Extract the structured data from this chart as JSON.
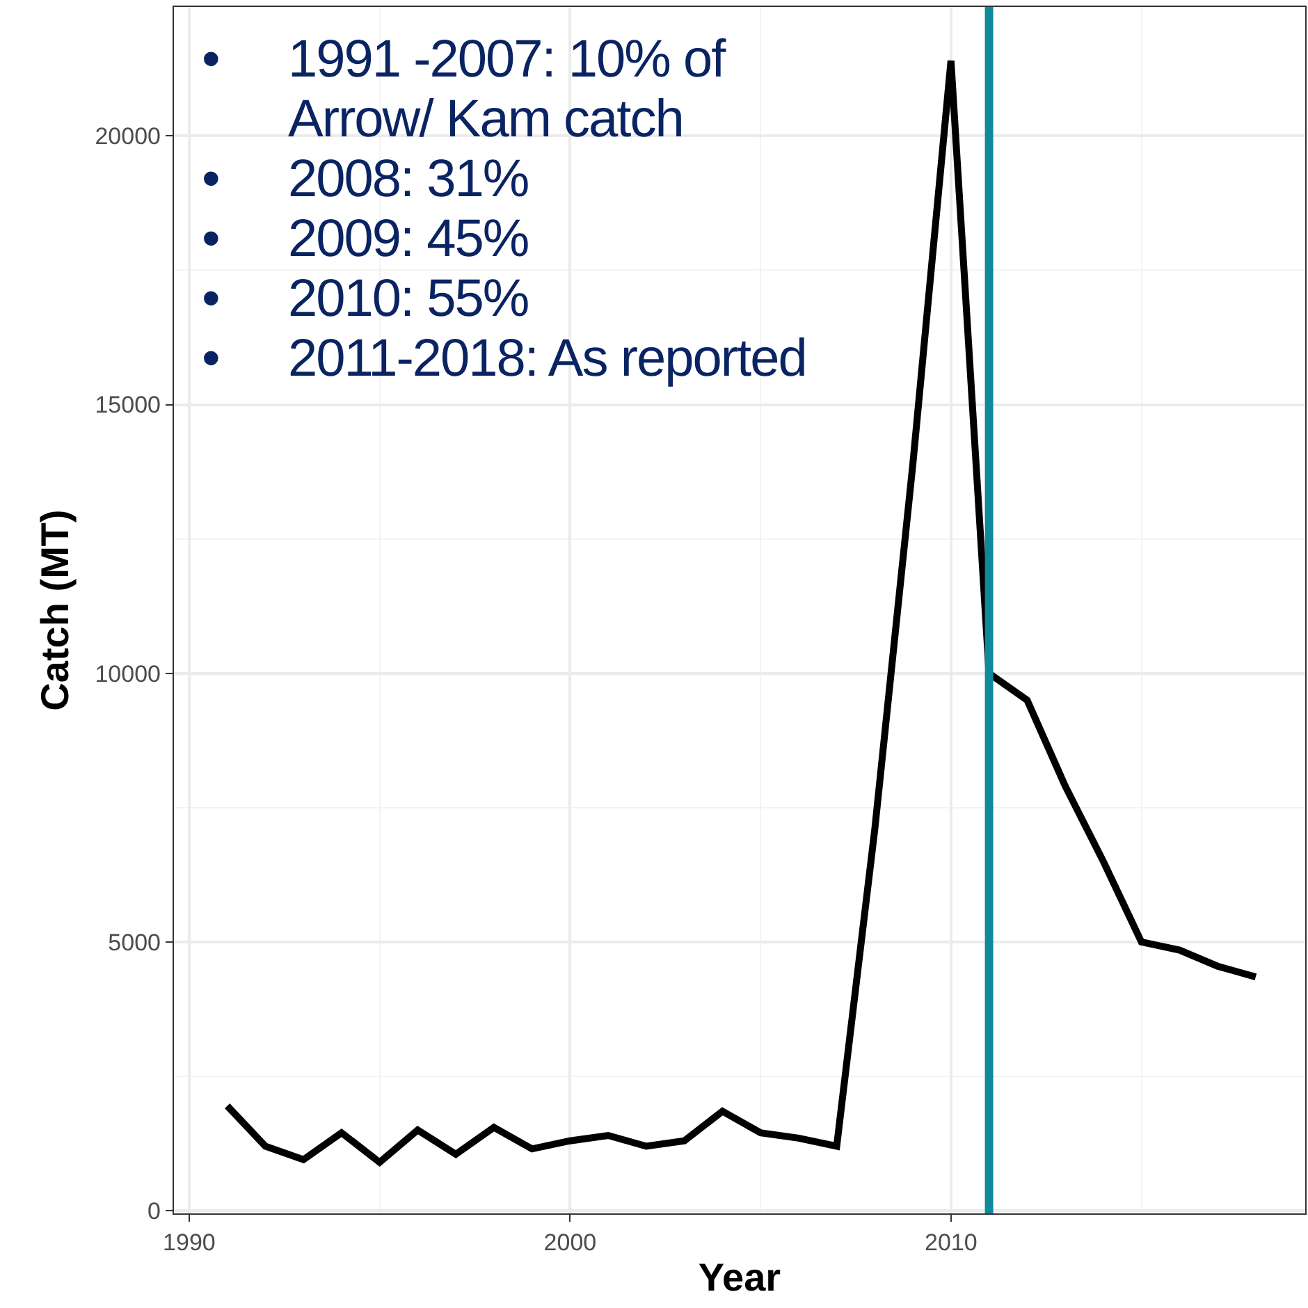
{
  "chart_data": {
    "type": "line",
    "xlabel": "Year",
    "ylabel": "Catch (MT)",
    "x": [
      1991,
      1992,
      1993,
      1994,
      1995,
      1996,
      1997,
      1998,
      1999,
      2000,
      2001,
      2002,
      2003,
      2004,
      2005,
      2006,
      2007,
      2008,
      2009,
      2010,
      2011,
      2012,
      2013,
      2014,
      2015,
      2016,
      2017,
      2018
    ],
    "series": [
      {
        "color": "#000000",
        "values": [
          1950,
          1200,
          950,
          1450,
          900,
          1500,
          1050,
          1550,
          1150,
          1300,
          1400,
          1200,
          1300,
          1850,
          1450,
          1350,
          1200,
          7100,
          13900,
          21400,
          10000,
          9500,
          7900,
          6500,
          5000,
          4850,
          4550,
          4350
        ]
      }
    ],
    "xlim": [
      1989.6,
      2019.3
    ],
    "xticks": [
      1990,
      2000,
      2010
    ],
    "ylim": [
      -50,
      22400
    ],
    "yticks": [
      0,
      5000,
      10000,
      15000,
      20000
    ],
    "grid": true,
    "marker": "none",
    "line_style": "solid",
    "ref_lines": [
      {
        "axis": "x",
        "value": 2011,
        "color": "#0e8a9c"
      }
    ],
    "annotations": [
      "• 1991 -2007: 10% of Arrow/ Kam catch",
      "• 2008: 31%",
      "• 2009: 45%",
      "• 2010: 55%",
      "• 2011-2018: As reported"
    ]
  }
}
